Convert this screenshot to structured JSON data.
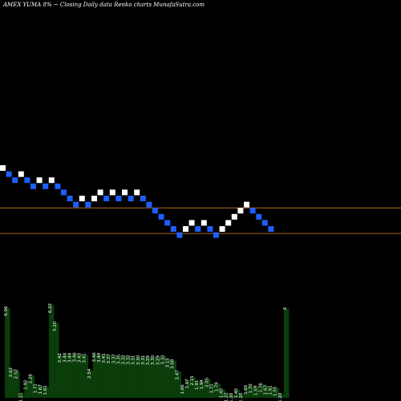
{
  "title": "AMEX  YUMA 8% ~   Closing Daily data  Renko  charts MunafaSutra.com",
  "colors": {
    "background": "#000000",
    "up_brick": "#ffffff",
    "down_brick": "#1e5eff",
    "line": "#b5651d",
    "volume": "#0a3d0a"
  },
  "chart_data": [
    {
      "type": "renko",
      "title": "AMEX  YUMA 8% ~   Closing Daily data  Renko  charts MunafaSutra.com",
      "bricks": [
        "up",
        "down",
        "down",
        "up",
        "down",
        "down",
        "up",
        "down",
        "up",
        "down",
        "down",
        "down",
        "down",
        "up",
        "down",
        "up",
        "up",
        "down",
        "up",
        "down",
        "up",
        "down",
        "up",
        "down",
        "down",
        "down",
        "down",
        "down",
        "down",
        "down",
        "up",
        "up",
        "down",
        "up",
        "down",
        "down",
        "up",
        "up",
        "up",
        "up",
        "up",
        "down",
        "down",
        "down",
        "down"
      ],
      "reference_lines": [
        "upper",
        "lower"
      ]
    },
    {
      "type": "bar",
      "labels": [
        "6.06",
        "2.62",
        "2.52",
        "1.21",
        "1.92",
        "2.26",
        "1.71",
        "1.67",
        "1.61",
        "6.22",
        "5.20",
        "3.42",
        "3.44",
        "3.44",
        "3.46",
        "3.43",
        "3.41",
        "2.54",
        "3.46",
        "3.44",
        "3.41",
        "3.37",
        "3.37",
        "3.35",
        "3.32",
        "3.32",
        "3.31",
        "3.30",
        "3.31",
        "3.29",
        "3.30",
        "3.29",
        "3.32",
        "3.15",
        "3.08",
        "2.47",
        "1.66",
        "1.97",
        "2.15",
        "1.91",
        "1.94",
        "2.05",
        "1.71",
        "1.79",
        "1.45",
        "1.22",
        "1.20",
        "1.45",
        "1.20",
        "1.65",
        "1.70",
        "1.59",
        "1.76",
        "1.63",
        "1.61",
        "1.55",
        "1.20",
        "6"
      ],
      "values": [
        6.06,
        2.62,
        2.52,
        1.21,
        1.92,
        2.26,
        1.71,
        1.67,
        1.61,
        6.22,
        5.2,
        3.42,
        3.44,
        3.44,
        3.46,
        3.43,
        3.41,
        2.54,
        3.46,
        3.44,
        3.41,
        3.37,
        3.37,
        3.35,
        3.32,
        3.32,
        3.31,
        3.3,
        3.31,
        3.29,
        3.3,
        3.29,
        3.32,
        3.15,
        3.08,
        2.47,
        1.66,
        1.97,
        2.15,
        1.91,
        1.94,
        2.05,
        1.71,
        1.79,
        1.45,
        1.22,
        1.2,
        1.45,
        1.2,
        1.65,
        1.7,
        1.59,
        1.76,
        1.63,
        1.61,
        1.55,
        1.2,
        6
      ]
    }
  ]
}
